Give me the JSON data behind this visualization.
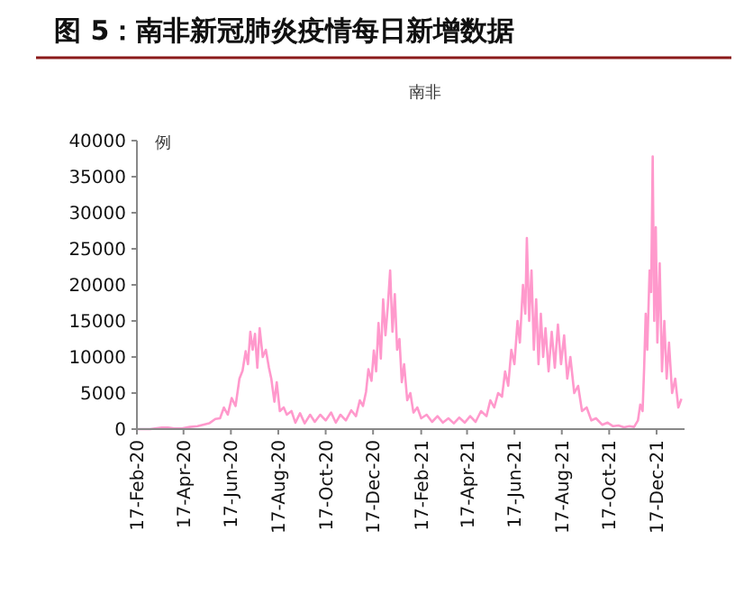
{
  "chart_data": {
    "type": "line",
    "title": "图 5：南非新冠肺炎疫情每日新增数据",
    "subtitle": "南非",
    "ylabel": "例",
    "x": [
      "2020-02-17",
      "2020-03-05",
      "2020-03-20",
      "2020-03-28",
      "2020-04-05",
      "2020-04-15",
      "2020-04-25",
      "2020-05-05",
      "2020-05-12",
      "2020-05-20",
      "2020-05-28",
      "2020-06-03",
      "2020-06-08",
      "2020-06-13",
      "2020-06-18",
      "2020-06-23",
      "2020-06-28",
      "2020-07-02",
      "2020-07-06",
      "2020-07-09",
      "2020-07-12",
      "2020-07-15",
      "2020-07-18",
      "2020-07-21",
      "2020-07-24",
      "2020-07-28",
      "2020-08-01",
      "2020-08-05",
      "2020-08-08",
      "2020-08-12",
      "2020-08-15",
      "2020-08-19",
      "2020-08-24",
      "2020-08-28",
      "2020-09-03",
      "2020-09-08",
      "2020-09-14",
      "2020-09-20",
      "2020-09-27",
      "2020-10-03",
      "2020-10-10",
      "2020-10-17",
      "2020-10-24",
      "2020-10-30",
      "2020-11-05",
      "2020-11-12",
      "2020-11-19",
      "2020-11-25",
      "2020-11-30",
      "2020-12-04",
      "2020-12-08",
      "2020-12-11",
      "2020-12-15",
      "2020-12-18",
      "2020-12-21",
      "2020-12-24",
      "2020-12-27",
      "2020-12-30",
      "2021-01-02",
      "2021-01-05",
      "2021-01-08",
      "2021-01-11",
      "2021-01-14",
      "2021-01-17",
      "2021-01-20",
      "2021-01-23",
      "2021-01-26",
      "2021-01-30",
      "2021-02-03",
      "2021-02-07",
      "2021-02-12",
      "2021-02-17",
      "2021-02-24",
      "2021-03-03",
      "2021-03-10",
      "2021-03-17",
      "2021-03-24",
      "2021-03-31",
      "2021-04-07",
      "2021-04-14",
      "2021-04-21",
      "2021-04-28",
      "2021-05-05",
      "2021-05-12",
      "2021-05-17",
      "2021-05-22",
      "2021-05-27",
      "2021-06-01",
      "2021-06-05",
      "2021-06-09",
      "2021-06-13",
      "2021-06-17",
      "2021-06-21",
      "2021-06-24",
      "2021-06-28",
      "2021-07-01",
      "2021-07-03",
      "2021-07-06",
      "2021-07-09",
      "2021-07-12",
      "2021-07-15",
      "2021-07-18",
      "2021-07-21",
      "2021-07-24",
      "2021-07-27",
      "2021-07-31",
      "2021-08-04",
      "2021-08-08",
      "2021-08-12",
      "2021-08-16",
      "2021-08-20",
      "2021-08-24",
      "2021-08-28",
      "2021-09-02",
      "2021-09-07",
      "2021-09-12",
      "2021-09-18",
      "2021-09-24",
      "2021-09-30",
      "2021-10-08",
      "2021-10-15",
      "2021-10-22",
      "2021-10-29",
      "2021-11-05",
      "2021-11-12",
      "2021-11-18",
      "2021-11-23",
      "2021-11-26",
      "2021-11-29",
      "2021-12-01",
      "2021-12-03",
      "2021-12-05",
      "2021-12-08",
      "2021-12-10",
      "2021-12-12",
      "2021-12-14",
      "2021-12-16",
      "2021-12-18",
      "2021-12-21",
      "2021-12-24",
      "2021-12-27",
      "2021-12-30",
      "2022-01-02",
      "2022-01-06",
      "2022-01-10",
      "2022-01-14",
      "2022-01-18"
    ],
    "series": [
      {
        "color": "#ff99cc",
        "values": [
          0,
          0,
          200,
          200,
          100,
          100,
          300,
          400,
          600,
          800,
          1400,
          1500,
          3000,
          2000,
          4300,
          3200,
          7000,
          8100,
          10800,
          9000,
          13500,
          11000,
          13200,
          8500,
          14000,
          10000,
          11000,
          8500,
          7000,
          3800,
          6500,
          2500,
          3000,
          2000,
          2500,
          900,
          2200,
          800,
          2000,
          1000,
          2000,
          1200,
          2300,
          900,
          2000,
          1200,
          2600,
          1800,
          4000,
          3200,
          5200,
          8300,
          6700,
          10900,
          8000,
          14700,
          9800,
          18000,
          13000,
          17000,
          22000,
          13500,
          18700,
          11000,
          12500,
          6500,
          9000,
          4000,
          5000,
          2300,
          3000,
          1500,
          2000,
          1000,
          1800,
          900,
          1500,
          800,
          1600,
          900,
          1800,
          1000,
          2500,
          1800,
          4000,
          3000,
          5000,
          4500,
          8000,
          6000,
          11000,
          9000,
          15000,
          12000,
          20000,
          16000,
          26500,
          15000,
          22000,
          11000,
          18000,
          9000,
          16000,
          10000,
          14000,
          8000,
          13500,
          8500,
          14500,
          9000,
          13000,
          7000,
          10000,
          5000,
          6000,
          2500,
          3000,
          1200,
          1500,
          600,
          900,
          400,
          500,
          250,
          400,
          300,
          1200,
          3400,
          2500,
          8500,
          16000,
          11000,
          22000,
          19000,
          37800,
          15000,
          28000,
          12000,
          23000,
          8000,
          15000,
          7000,
          12000,
          5000,
          7000,
          3000,
          4200
        ]
      }
    ],
    "xlim": [
      "2020-02-17",
      "2022-01-22"
    ],
    "xticks": [
      {
        "value": "2020-02-17",
        "label": "17-Feb-20"
      },
      {
        "value": "2020-04-17",
        "label": "17-Apr-20"
      },
      {
        "value": "2020-06-17",
        "label": "17-Jun-20"
      },
      {
        "value": "2020-08-17",
        "label": "17-Aug-20"
      },
      {
        "value": "2020-10-17",
        "label": "17-Oct-20"
      },
      {
        "value": "2020-12-17",
        "label": "17-Dec-20"
      },
      {
        "value": "2021-02-17",
        "label": "17-Feb-21"
      },
      {
        "value": "2021-04-17",
        "label": "17-Apr-21"
      },
      {
        "value": "2021-06-17",
        "label": "17-Jun-21"
      },
      {
        "value": "2021-08-17",
        "label": "17-Aug-21"
      },
      {
        "value": "2021-10-17",
        "label": "17-Oct-21"
      },
      {
        "value": "2021-12-17",
        "label": "17-Dec-21"
      }
    ],
    "ylim": [
      0,
      40000
    ],
    "yticks": [
      0,
      5000,
      10000,
      15000,
      20000,
      25000,
      30000,
      35000,
      40000
    ],
    "marker": "none",
    "line_style": "solid"
  }
}
